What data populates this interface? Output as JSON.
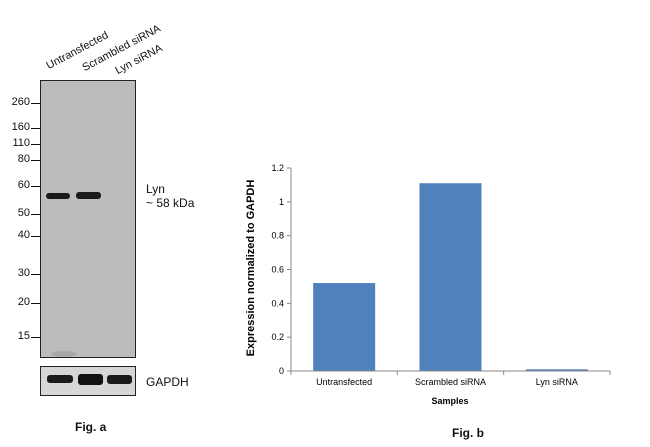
{
  "fig_a": {
    "lanes": [
      "Untransfected",
      "Scrambled siRNA",
      "Lyn siRNA"
    ],
    "mw_markers": [
      "260",
      "160",
      "110",
      "80",
      "60",
      "50",
      "40",
      "30",
      "20",
      "15"
    ],
    "target_label_line1": "Lyn",
    "target_label_line2": "~ 58 kDa",
    "loading_control": "GAPDH",
    "caption": "Fig. a",
    "blot_color": "#bcbcbc",
    "band_color": "#1a1a1a"
  },
  "fig_b": {
    "caption": "Fig. b"
  },
  "chart_data": {
    "type": "bar",
    "categories": [
      "Untransfected",
      "Scrambled siRNA",
      "Lyn siRNA"
    ],
    "values": [
      0.52,
      1.11,
      0.01
    ],
    "xlabel": "Samples",
    "ylabel": "Expression normalized to GAPDH",
    "ylim": [
      0,
      1.2
    ],
    "yticks": [
      "0",
      "0.2",
      "0.4",
      "0.6",
      "0.8",
      "1",
      "1.2"
    ],
    "bar_color": "#4f81bd",
    "grid": false
  }
}
